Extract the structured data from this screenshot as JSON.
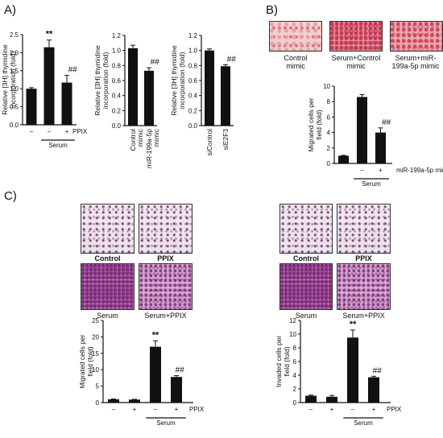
{
  "panels": {
    "a": "A)",
    "b": "B)",
    "c": "C)"
  },
  "colors": {
    "bar": "#111111",
    "axis": "#111111",
    "background": "#ffffff"
  },
  "chart_data": [
    {
      "id": "a1",
      "type": "bar",
      "ylabel": "Relative [3H] thymidine incorporation (fold)",
      "ylim": [
        0,
        2.5
      ],
      "yticks": [
        "0.0",
        "0.5",
        "1.0",
        "1.5",
        "2.0",
        "2.5"
      ],
      "values": [
        1.0,
        2.15,
        1.17
      ],
      "errors": [
        0.03,
        0.2,
        0.2
      ],
      "annotations": [
        "",
        "**",
        "##"
      ],
      "treatment_rows": [
        {
          "label": "PPIX",
          "marks": [
            "–",
            "–",
            "+"
          ]
        }
      ],
      "group_label": "Serum",
      "group_bars": [
        1,
        2
      ],
      "group_label_x": [
        1,
        2
      ]
    },
    {
      "id": "a2",
      "type": "bar",
      "ylabel": "Relative [3H] thymidine incorporation (fold)",
      "ylim": [
        0,
        1.2
      ],
      "yticks": [
        "0.0",
        "0.2",
        "0.4",
        "0.6",
        "0.8",
        "1.0",
        "1.2"
      ],
      "categories": [
        "Control mimic",
        "miR-199a-5p mimic"
      ],
      "values": [
        1.03,
        0.73
      ],
      "errors": [
        0.04,
        0.04
      ],
      "annotations": [
        "",
        "##"
      ]
    },
    {
      "id": "a3",
      "type": "bar",
      "ylabel": "Relative [3H] thymidine incorporation (fold)",
      "ylim": [
        0,
        1.2
      ],
      "yticks": [
        "0.0",
        "0.2",
        "0.4",
        "0.6",
        "0.8",
        "1.0",
        "1.2"
      ],
      "categories": [
        "siControl",
        "siE2F3"
      ],
      "values": [
        1.0,
        0.79
      ],
      "errors": [
        0.02,
        0.02
      ],
      "annotations": [
        "",
        "##"
      ]
    },
    {
      "id": "b1",
      "type": "bar",
      "ylabel": "Migrated cells per field (fold)",
      "ylim": [
        0,
        10
      ],
      "yticks": [
        "0",
        "2",
        "4",
        "6",
        "8",
        "10"
      ],
      "values": [
        1.0,
        8.6,
        4.0
      ],
      "errors": [
        0.05,
        0.3,
        0.6
      ],
      "annotations": [
        "",
        "",
        "##"
      ],
      "treatment_rows": [
        {
          "label": "miR-199a-5p mimic",
          "marks": [
            "",
            "–",
            "+"
          ]
        }
      ],
      "group_label": "Serum",
      "group_bars": [
        1,
        2
      ]
    },
    {
      "id": "c1",
      "type": "bar",
      "ylabel": "Migrated cells per field (fold)",
      "ylim": [
        0,
        25
      ],
      "yticks": [
        "0",
        "5",
        "10",
        "15",
        "20",
        "25"
      ],
      "values": [
        1.0,
        0.9,
        17.0,
        7.8
      ],
      "errors": [
        0.1,
        0.1,
        1.8,
        0.4
      ],
      "annotations": [
        "",
        "",
        "**",
        "##"
      ],
      "treatment_rows": [
        {
          "label": "PPIX",
          "marks": [
            "–",
            "+",
            "–",
            "+"
          ]
        }
      ],
      "group_label": "Serum",
      "group_bars": [
        2,
        3
      ]
    },
    {
      "id": "c2",
      "type": "bar",
      "ylabel": "Invaded cells per field (fold)",
      "ylim": [
        0,
        12
      ],
      "yticks": [
        "0",
        "2",
        "4",
        "6",
        "8",
        "10",
        "12"
      ],
      "values": [
        1.0,
        0.85,
        9.5,
        3.7
      ],
      "errors": [
        0.1,
        0.2,
        1.1,
        0.15
      ],
      "annotations": [
        "",
        "",
        "**",
        "##"
      ],
      "treatment_rows": [
        {
          "label": "PPIX",
          "marks": [
            "–",
            "+",
            "–",
            "+"
          ]
        }
      ],
      "group_label": "Serum",
      "group_bars": [
        2,
        3
      ]
    }
  ],
  "micrographs": {
    "b": [
      "Control mimic",
      "Serum+Control mimic",
      "Serum+miR-199a-5p mimic"
    ],
    "c_migration": [
      "Control",
      "PPIX",
      "Serum",
      "Serum+PPIX"
    ],
    "c_invasion": [
      "Control",
      "PPIX",
      "Serum",
      "Serum+PPIX"
    ]
  }
}
